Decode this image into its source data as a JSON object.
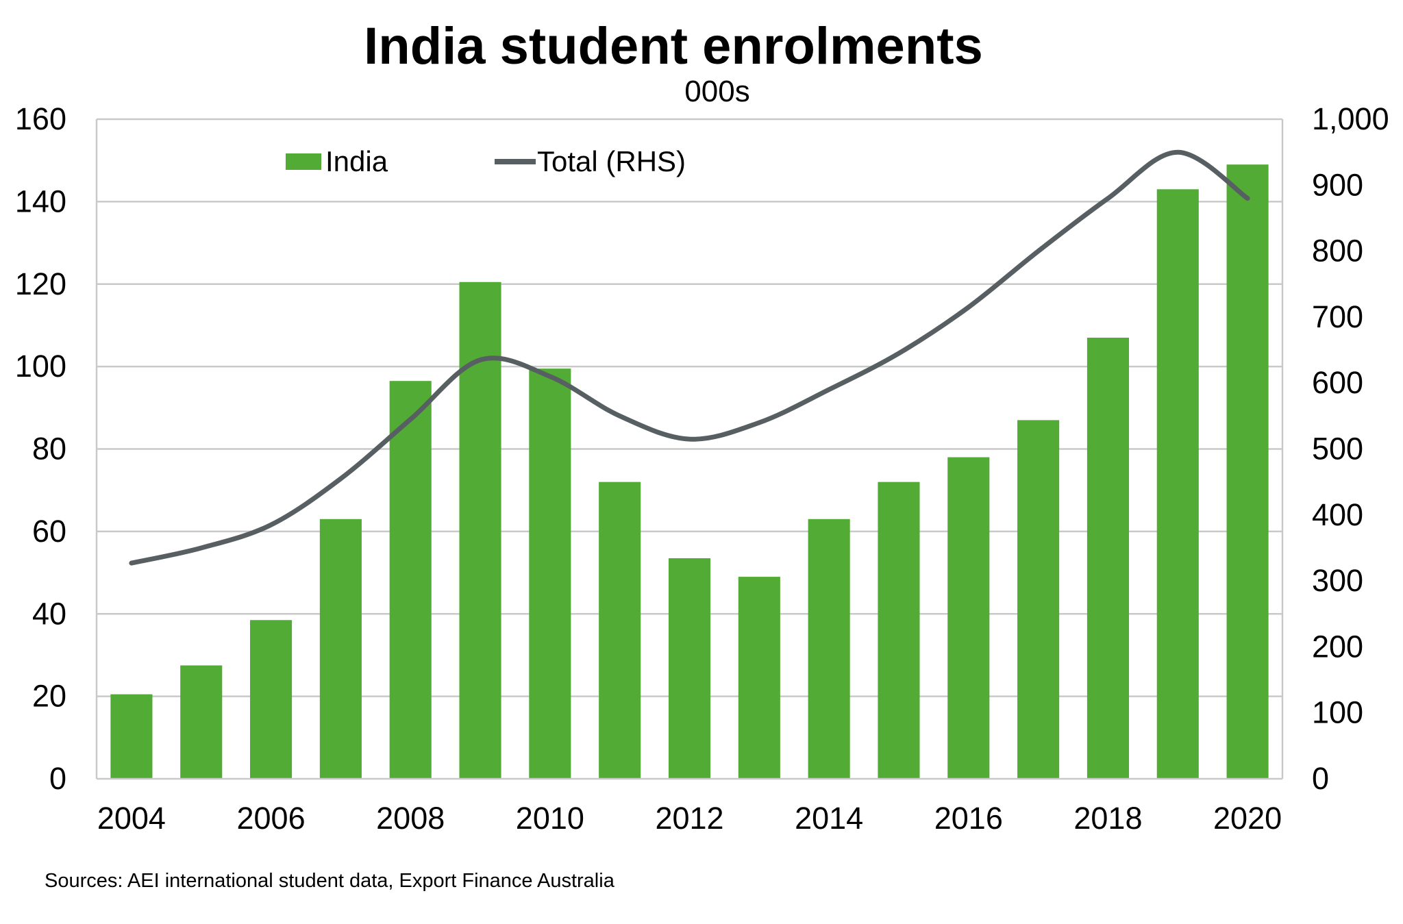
{
  "chart_data": {
    "type": "bar",
    "title": "India student enrolments",
    "subtitle": "000s",
    "source": "Sources: AEI international student data, Export Finance Australia",
    "x": [
      2004,
      2005,
      2006,
      2007,
      2008,
      2009,
      2010,
      2011,
      2012,
      2013,
      2014,
      2015,
      2016,
      2017,
      2018,
      2019,
      2020
    ],
    "x_tick_labels": [
      "2004",
      "2006",
      "2008",
      "2010",
      "2012",
      "2014",
      "2016",
      "2018",
      "2020"
    ],
    "x_tick_values": [
      2004,
      2006,
      2008,
      2010,
      2012,
      2014,
      2016,
      2018,
      2020
    ],
    "y_left": {
      "lim": [
        0,
        160
      ],
      "ticks": [
        0,
        20,
        40,
        60,
        80,
        100,
        120,
        140,
        160
      ],
      "tick_labels": [
        "0",
        "20",
        "40",
        "60",
        "80",
        "100",
        "120",
        "140",
        "160"
      ]
    },
    "y_right": {
      "lim": [
        0,
        1000
      ],
      "ticks": [
        0,
        100,
        200,
        300,
        400,
        500,
        600,
        700,
        800,
        900,
        1000
      ],
      "tick_labels": [
        "0",
        "100",
        "200",
        "300",
        "400",
        "500",
        "600",
        "700",
        "800",
        "900",
        "1,000"
      ]
    },
    "series": [
      {
        "name": "India",
        "kind": "bar",
        "axis": "left",
        "color": "#52ab34",
        "values": [
          20.5,
          27.5,
          38.5,
          63,
          96.5,
          120.5,
          99.5,
          72,
          53.5,
          49,
          63,
          72,
          78,
          87,
          107,
          143,
          149
        ]
      },
      {
        "name": "Total (RHS)",
        "kind": "line",
        "axis": "right",
        "color": "#575f63",
        "values": [
          327,
          350,
          385,
          455,
          545,
          635,
          610,
          550,
          515,
          540,
          590,
          645,
          715,
          800,
          880,
          950,
          880
        ]
      }
    ],
    "grid": true,
    "legend_position": "top-left"
  }
}
